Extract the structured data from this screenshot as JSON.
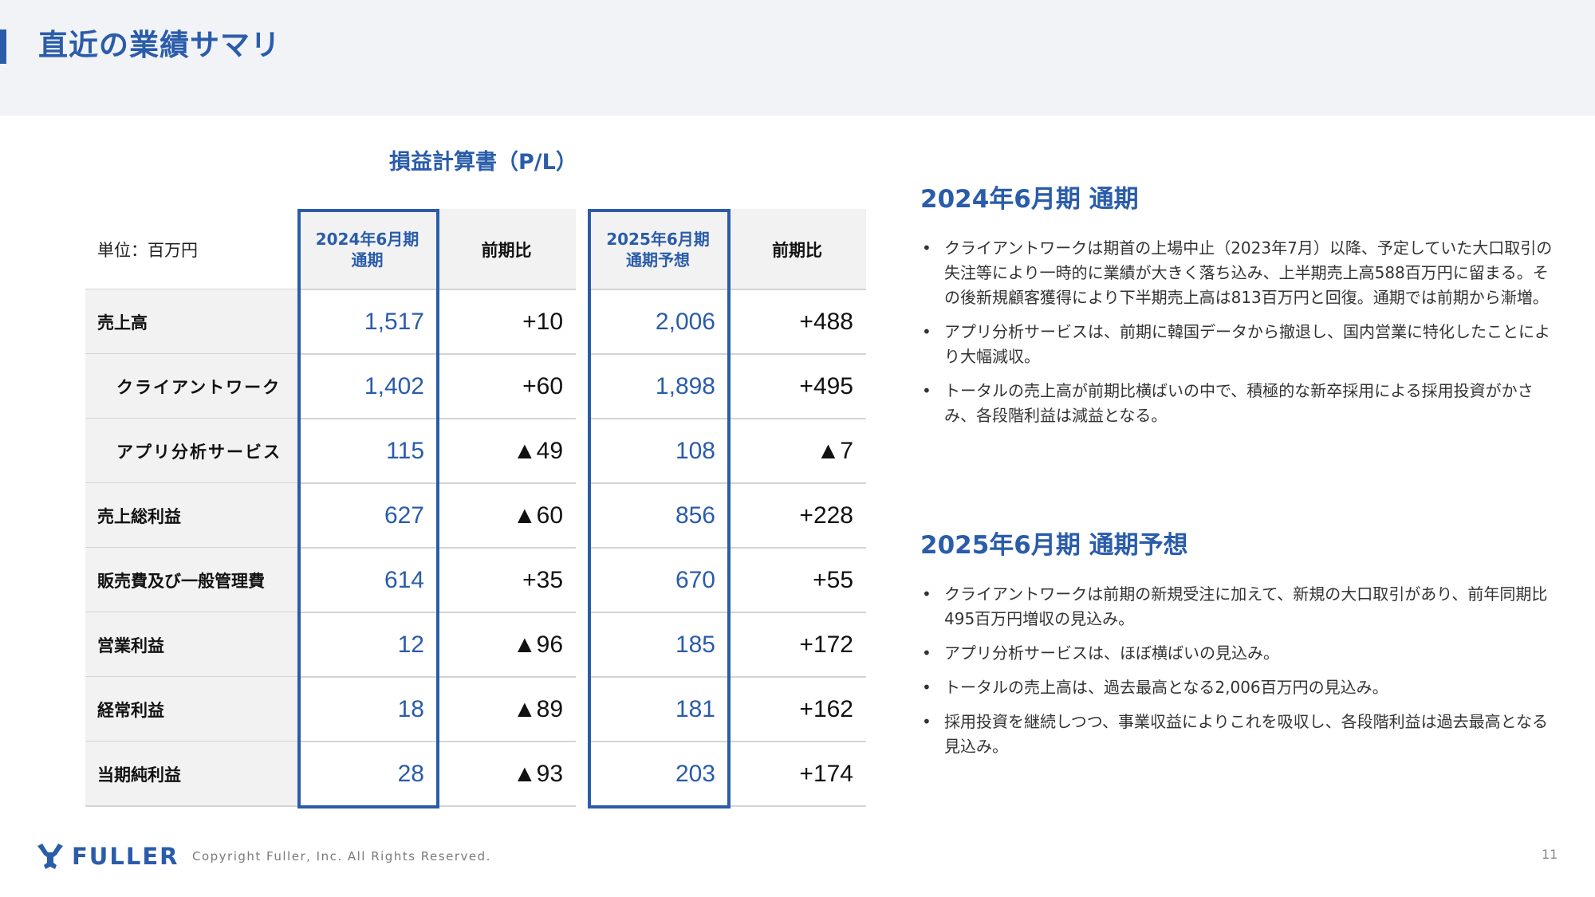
{
  "header": {
    "title": "直近の業績サマリ"
  },
  "table": {
    "title": "損益計算書（P/L）",
    "unit_label": "単位：百万円",
    "columns": {
      "fy2024": [
        "2024年6月期",
        "通期"
      ],
      "fy2024_diff": "前期比",
      "fy2025": [
        "2025年6月期",
        "通期予想"
      ],
      "fy2025_diff": "前期比"
    },
    "rows": [
      {
        "label": "売上高",
        "indent": false,
        "fy2024": "1,517",
        "fy2024_diff": "+10",
        "fy2025": "2,006",
        "fy2025_diff": "+488"
      },
      {
        "label": "クライアントワーク",
        "indent": true,
        "fy2024": "1,402",
        "fy2024_diff": "+60",
        "fy2025": "1,898",
        "fy2025_diff": "+495"
      },
      {
        "label": "アプリ分析サービス",
        "indent": true,
        "fy2024": "115",
        "fy2024_diff": "▲49",
        "fy2025": "108",
        "fy2025_diff": "▲7"
      },
      {
        "label": "売上総利益",
        "indent": false,
        "fy2024": "627",
        "fy2024_diff": "▲60",
        "fy2025": "856",
        "fy2025_diff": "+228"
      },
      {
        "label": "販売費及び一般管理費",
        "indent": false,
        "fy2024": "614",
        "fy2024_diff": "+35",
        "fy2025": "670",
        "fy2025_diff": "+55"
      },
      {
        "label": "営業利益",
        "indent": false,
        "fy2024": "12",
        "fy2024_diff": "▲96",
        "fy2025": "185",
        "fy2025_diff": "+172"
      },
      {
        "label": "経常利益",
        "indent": false,
        "fy2024": "18",
        "fy2024_diff": "▲89",
        "fy2025": "181",
        "fy2025_diff": "+162"
      },
      {
        "label": "当期純利益",
        "indent": false,
        "fy2024": "28",
        "fy2024_diff": "▲93",
        "fy2025": "203",
        "fy2025_diff": "+174"
      }
    ]
  },
  "summary_2024": {
    "heading": "2024年6月期 通期",
    "bullets": [
      "クライアントワークは期首の上場中止（2023年7月）以降、予定していた大口取引の失注等により一時的に業績が大きく落ち込み、上半期売上高588百万円に留まる。その後新規顧客獲得により下半期売上高は813百万円と回復。通期では前期から漸増。",
      "アプリ分析サービスは、前期に韓国データから撤退し、国内営業に特化したことにより大幅減収。",
      "トータルの売上高が前期比横ばいの中で、積極的な新卒採用による採用投資がかさみ、各段階利益は減益となる。"
    ]
  },
  "summary_2025": {
    "heading": "2025年6月期 通期予想",
    "bullets": [
      "クライアントワークは前期の新規受注に加えて、新規の大口取引があり、前年同期比495百万円増収の見込み。",
      "アプリ分析サービスは、ほぼ横ばいの見込み。",
      "トータルの売上高は、過去最高となる2,006百万円の見込み。",
      "採用投資を継続しつつ、事業収益によりこれを吸収し、各段階利益は過去最高となる見込み。"
    ]
  },
  "footer": {
    "logo_text": "FULLER",
    "logo_icon": "fuller-tri-node-icon",
    "copyright": "Copyright Fuller, Inc. All Rights Reserved.",
    "page_number": "11"
  },
  "colors": {
    "brand_blue": "#2a5caa",
    "header_bg": "#f1f3f6",
    "label_bg": "#f2f2f2",
    "grid_line": "#d4d4d4"
  },
  "bullet_glyph": "•"
}
